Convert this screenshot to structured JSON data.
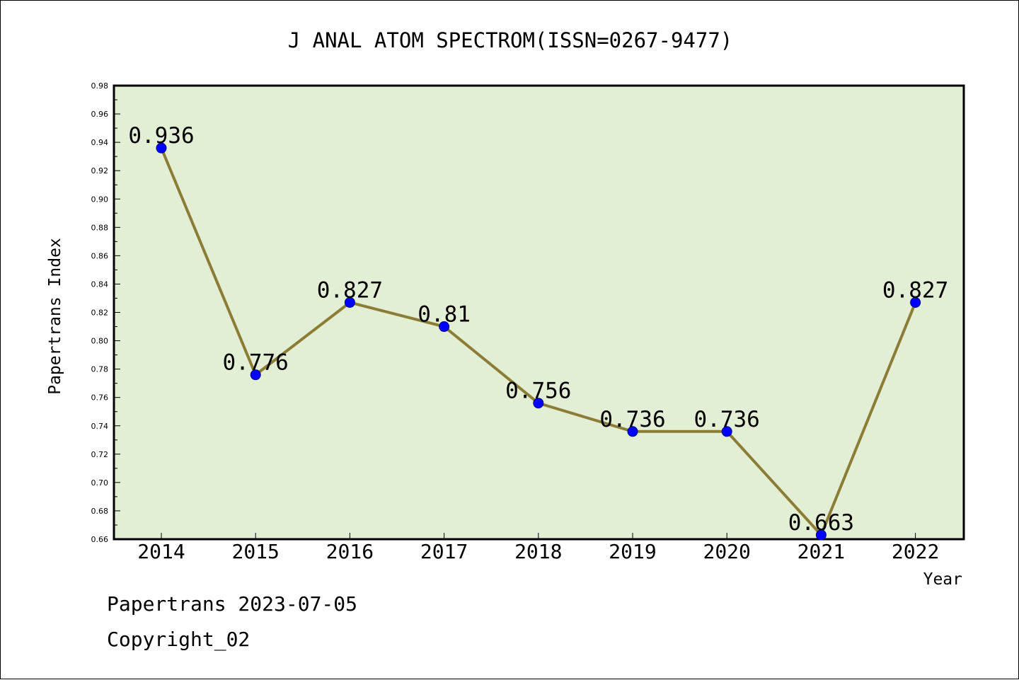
{
  "chart_data": {
    "type": "line",
    "title": "J ANAL ATOM SPECTROM(ISSN=0267-9477)",
    "xlabel": "Year",
    "ylabel": "Papertrans Index",
    "categories": [
      "2014",
      "2015",
      "2016",
      "2017",
      "2018",
      "2019",
      "2020",
      "2021",
      "2022"
    ],
    "values": [
      0.936,
      0.776,
      0.827,
      0.81,
      0.756,
      0.736,
      0.736,
      0.663,
      0.827
    ],
    "value_labels": [
      "0.936",
      "0.776",
      "0.827",
      "0.81",
      "0.756",
      "0.736",
      "0.736",
      "0.663",
      "0.827"
    ],
    "ylim": [
      0.66,
      0.98
    ],
    "yticks": [
      "0.66",
      "0.68",
      "0.70",
      "0.72",
      "0.74",
      "0.76",
      "0.78",
      "0.80",
      "0.82",
      "0.84",
      "0.86",
      "0.88",
      "0.90",
      "0.92",
      "0.94",
      "0.96",
      "0.98"
    ],
    "grid": false,
    "colors": {
      "plot_background": "#e2efd5",
      "line": "#8b7d35",
      "marker": "#0000ff"
    }
  },
  "footer": {
    "line1": "Papertrans 2023-07-05",
    "line2": "Copyright_02"
  }
}
